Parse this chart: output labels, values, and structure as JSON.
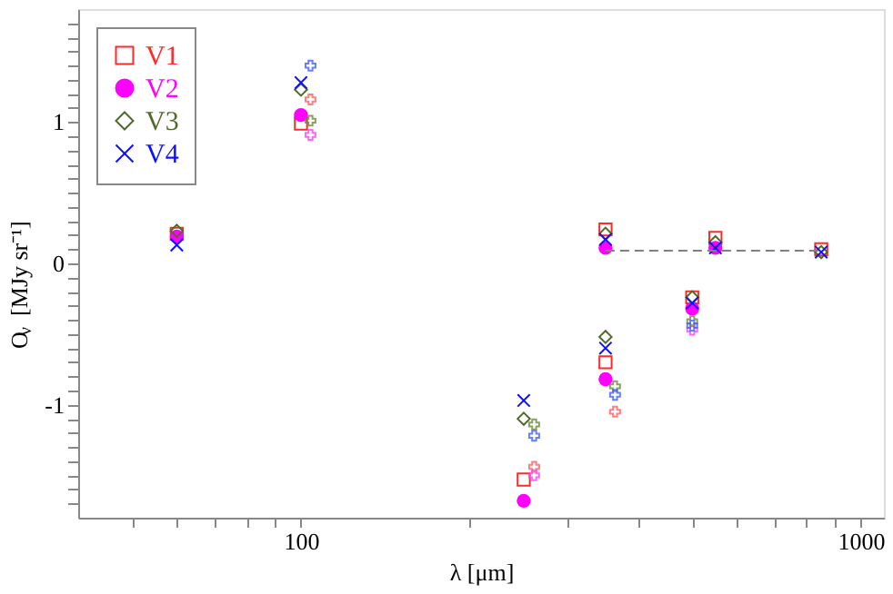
{
  "chart_data": {
    "type": "scatter",
    "xlabel": "λ [μm]",
    "ylabel": "O$_{ν}$ [MJy sr⁻¹]",
    "log": "x",
    "xlim": [
      40,
      1100
    ],
    "ylim": [
      -1.8,
      1.8
    ],
    "xticks": [
      {
        "value": 50,
        "label": null
      },
      {
        "value": 60,
        "label": null
      },
      {
        "value": 70,
        "label": null
      },
      {
        "value": 80,
        "label": null
      },
      {
        "value": 90,
        "label": null
      },
      100,
      {
        "value": 200,
        "label": null
      },
      {
        "value": 300,
        "label": null
      },
      {
        "value": 400,
        "label": null
      },
      {
        "value": 500,
        "label": null
      },
      {
        "value": 600,
        "label": null
      },
      {
        "value": 700,
        "label": null
      },
      {
        "value": 800,
        "label": null
      },
      {
        "value": 900,
        "label": null
      },
      1000
    ],
    "yticks": [
      {
        "value": -1.7,
        "label": null
      },
      {
        "value": -1.6,
        "label": null
      },
      {
        "value": -1.5,
        "label": null
      },
      {
        "value": -1.4,
        "label": null
      },
      {
        "value": -1.3,
        "label": null
      },
      {
        "value": -1.2,
        "label": null
      },
      {
        "value": -1.1,
        "label": null
      },
      -1,
      {
        "value": -0.9,
        "label": null
      },
      {
        "value": -0.8,
        "label": null
      },
      {
        "value": -0.7,
        "label": null
      },
      {
        "value": -0.6,
        "label": null
      },
      {
        "value": -0.5,
        "label": null
      },
      {
        "value": -0.4,
        "label": null
      },
      {
        "value": -0.3,
        "label": null
      },
      {
        "value": -0.2,
        "label": null
      },
      {
        "value": -0.1,
        "label": null
      },
      0,
      {
        "value": 0.1,
        "label": null
      },
      {
        "value": 0.2,
        "label": null
      },
      {
        "value": 0.3,
        "label": null
      },
      {
        "value": 0.4,
        "label": null
      },
      {
        "value": 0.5,
        "label": null
      },
      {
        "value": 0.6,
        "label": null
      },
      {
        "value": 0.7,
        "label": null
      },
      {
        "value": 0.8,
        "label": null
      },
      {
        "value": 0.9,
        "label": null
      },
      1,
      {
        "value": 1.1,
        "label": null
      },
      {
        "value": 1.2,
        "label": null
      },
      {
        "value": 1.3,
        "label": null
      },
      {
        "value": 1.4,
        "label": null
      },
      {
        "value": 1.5,
        "label": null
      },
      {
        "value": 1.6,
        "label": null
      },
      {
        "value": 1.7,
        "label": null
      }
    ],
    "grid": false,
    "legend": "top left",
    "x": [
      60,
      100,
      250,
      350,
      350,
      500,
      550,
      850
    ],
    "series": [
      {
        "name": "V1",
        "color": "#ff2a2a",
        "marker": "square",
        "values": [
          0.21,
          0.99,
          -1.53,
          0.24,
          -0.7,
          -0.24,
          0.18,
          0.1
        ]
      },
      {
        "name": "V2",
        "color": "#ff00ff",
        "marker": "circle",
        "values": [
          0.19,
          1.05,
          -1.68,
          0.11,
          -0.82,
          -0.32,
          0.11,
          null
        ]
      },
      {
        "name": "V3",
        "color": "#4f6b2a",
        "marker": "diamond",
        "values": [
          0.23,
          1.23,
          -1.1,
          0.21,
          -0.52,
          -0.24,
          0.15,
          0.08
        ]
      },
      {
        "name": "V4",
        "color": "#1010ff",
        "marker": "x",
        "values": [
          0.13,
          1.28,
          -0.97,
          0.17,
          -0.6,
          -0.28,
          0.11,
          0.08
        ]
      },
      {
        "color": "#ff6060",
        "marker": "cross",
        "x": [
          104,
          261,
          364
        ],
        "values": [
          1.16,
          -1.44,
          -1.05
        ]
      },
      {
        "color": "#ff40ff",
        "marker": "cross",
        "x": [
          104,
          261,
          500
        ],
        "values": [
          0.91,
          -1.5,
          -0.47
        ]
      },
      {
        "color": "#6b8a3a",
        "marker": "cross",
        "x": [
          104,
          261,
          364,
          500
        ],
        "values": [
          1.01,
          -1.14,
          -0.87,
          -0.41
        ]
      },
      {
        "color": "#4060ff",
        "marker": "cross",
        "x": [
          104,
          261,
          364,
          500
        ],
        "values": [
          1.4,
          -1.22,
          -0.93,
          -0.44
        ]
      },
      {
        "type": "line",
        "color": "#808080",
        "line_style": "dashed",
        "marker": "none",
        "x": [
          350,
          850
        ],
        "values": [
          0.09,
          0.09
        ]
      }
    ]
  }
}
